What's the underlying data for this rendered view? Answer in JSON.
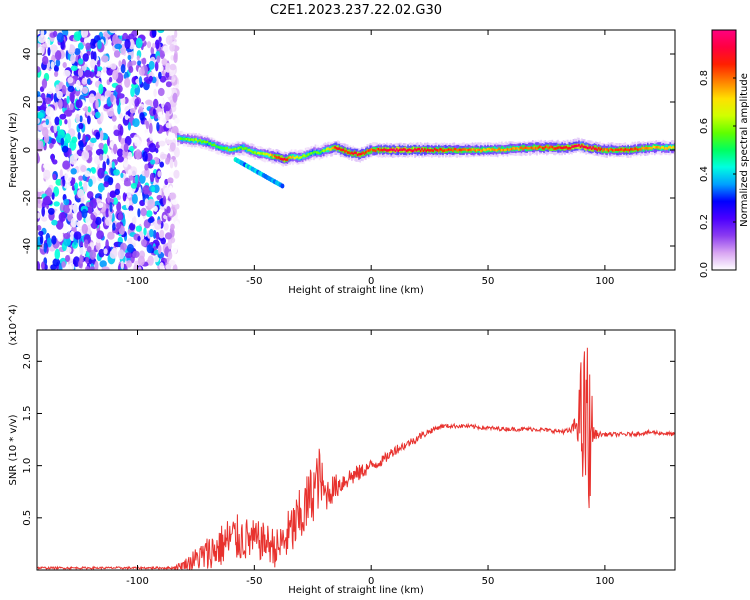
{
  "chart_data": [
    {
      "type": "heatmap",
      "title": "C2E1.2023.237.22.02.G30",
      "xlabel": "Height of straight line (km)",
      "ylabel": "Frequency (Hz)",
      "xlim": [
        -143,
        130
      ],
      "ylim": [
        -50,
        50
      ],
      "xticks": [
        -100,
        -50,
        0,
        50,
        100
      ],
      "yticks": [
        -40,
        -20,
        0,
        20,
        40
      ],
      "grid": false,
      "colorbar": {
        "label": "Normalized spectral amplitude",
        "range": [
          0,
          1
        ],
        "ticks": [
          "0.0",
          "0.2",
          "0.4",
          "0.6",
          "0.8"
        ],
        "colors": [
          "#ffffff",
          "#d9a6f2",
          "#8b3cf0",
          "#4b00ff",
          "#0000ff",
          "#00a0ff",
          "#00ffe0",
          "#00ff60",
          "#60ff00",
          "#d0ff00",
          "#ffe000",
          "#ff8000",
          "#ff2000",
          "#ff0040",
          "#ff0080"
        ]
      },
      "ridge": {
        "x": [
          -83,
          -75,
          -70,
          -65,
          -60,
          -55,
          -50,
          -45,
          -40,
          -37,
          -35,
          -30,
          -25,
          -22,
          -20,
          -15,
          -10,
          -5,
          0,
          10,
          30,
          50,
          70,
          85,
          88,
          92,
          100,
          110,
          120,
          130
        ],
        "freq": [
          5,
          4,
          3,
          1,
          0,
          1,
          -1,
          -2,
          -3,
          -4,
          -3,
          -3,
          -1,
          -1,
          0,
          1,
          -1,
          -2,
          0,
          0,
          0,
          0,
          1,
          1,
          2,
          1,
          0,
          0,
          1,
          1
        ],
        "amp": [
          0.55,
          0.6,
          0.55,
          0.55,
          0.6,
          0.55,
          0.6,
          0.65,
          0.85,
          0.9,
          0.75,
          0.6,
          0.55,
          0.55,
          0.6,
          0.9,
          0.85,
          0.9,
          0.8,
          0.95,
          0.85,
          0.75,
          0.8,
          0.9,
          0.95,
          0.95,
          0.8,
          0.85,
          0.75,
          0.7
        ]
      },
      "noise_region": {
        "x": [
          -143,
          -83
        ],
        "freq": [
          -50,
          50
        ],
        "amp_max": 0.45
      }
    },
    {
      "type": "line",
      "xlabel": "Height of straight line (km)",
      "ylabel": "SNR (10 * v/v)",
      "y_multiplier": "(x10^4)",
      "xlim": [
        -143,
        130
      ],
      "ylim": [
        0,
        2.3
      ],
      "xticks": [
        -100,
        -50,
        0,
        50,
        100
      ],
      "yticks": [
        0.5,
        1.0,
        1.5,
        2.0
      ],
      "grid": false,
      "series": [
        {
          "color": "#e8322e",
          "x": [
            -143,
            -100,
            -85,
            -80,
            -75,
            -70,
            -65,
            -60,
            -55,
            -50,
            -45,
            -40,
            -35,
            -30,
            -25,
            -22,
            -20,
            -15,
            -10,
            -5,
            0,
            5,
            10,
            15,
            20,
            25,
            30,
            40,
            50,
            60,
            70,
            80,
            85,
            88,
            90,
            91,
            92,
            93,
            94,
            95,
            97,
            100,
            110,
            120,
            130
          ],
          "y": [
            0.02,
            0.02,
            0.02,
            0.05,
            0.1,
            0.15,
            0.22,
            0.3,
            0.3,
            0.28,
            0.27,
            0.2,
            0.35,
            0.5,
            0.75,
            0.9,
            0.72,
            0.8,
            0.88,
            0.93,
            1.0,
            1.05,
            1.15,
            1.2,
            1.27,
            1.33,
            1.38,
            1.38,
            1.36,
            1.35,
            1.35,
            1.33,
            1.33,
            1.4,
            1.5,
            1.2,
            1.6,
            1.0,
            1.5,
            1.3,
            1.3,
            1.3,
            1.3,
            1.32,
            1.3
          ],
          "noise": [
            0.01,
            0.01,
            0.01,
            0.05,
            0.12,
            0.18,
            0.2,
            0.25,
            0.22,
            0.2,
            0.18,
            0.2,
            0.25,
            0.3,
            0.3,
            0.3,
            0.18,
            0.12,
            0.1,
            0.08,
            0.06,
            0.05,
            0.05,
            0.04,
            0.04,
            0.03,
            0.02,
            0.02,
            0.02,
            0.02,
            0.02,
            0.02,
            0.03,
            0.1,
            0.6,
            0.9,
            1.0,
            0.9,
            0.6,
            0.08,
            0.03,
            0.02,
            0.02,
            0.02,
            0.02
          ]
        }
      ]
    }
  ]
}
